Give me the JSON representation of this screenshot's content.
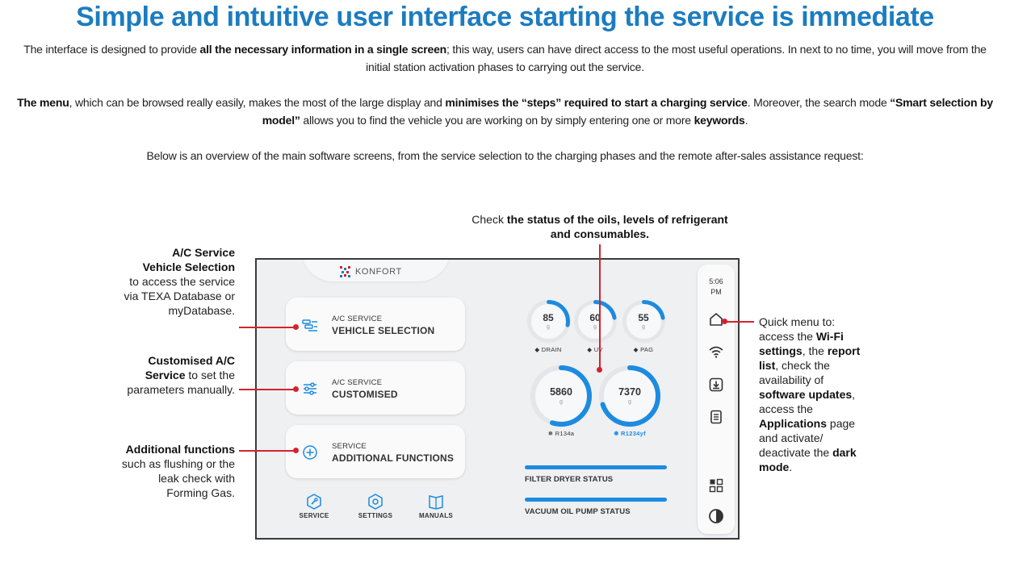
{
  "page": {
    "title": "Simple and intuitive user interface starting the service is immediate",
    "p1": {
      "a": "The interface is designed to provide ",
      "b": "all the necessary information in a single screen",
      "c": "; this way, users can have direct access to the most useful operations. In next to no time, you will move from the initial station activation phases to carrying out the service."
    },
    "p2": {
      "a": "The menu",
      "b": ", which can be browsed really easily, makes the most of the large display and ",
      "c": "minimises the “steps” required to start a charging service",
      "d": ". Moreover, the search mode ",
      "e": "“Smart selection by model”",
      "f": " allows you to find the vehicle you are working on by simply entering one or more ",
      "g": "keywords",
      "h": "."
    },
    "p3": "Below is an overview of the main software screens, from the service selection to the charging phases and the remote after-sales assistance request:"
  },
  "annotations": {
    "vehicle": {
      "b1": "A/C Service",
      "b2": "Vehicle Selection",
      "t": "to access the service via TEXA Database or myDatabase."
    },
    "customised": {
      "b": "Customised A/C Service",
      "t": " to set the parameters manually."
    },
    "additional": {
      "b": "Additional functions",
      "t": " such as flushing or the leak check with Forming Gas."
    },
    "status": {
      "a": "Check ",
      "b": "the status of the oils, levels of refrigerant and consumables."
    },
    "quick": {
      "a": "Quick menu to: access the ",
      "b": "Wi-Fi settings",
      "c": ", the ",
      "d": "report list",
      "e": ", check the availability of ",
      "f": "software updates",
      "g": ", access the ",
      "h": "Applications",
      "i": " page and activate/ deactivate the ",
      "j": "dark mode",
      "k": "."
    }
  },
  "screen": {
    "brand": "KONFORT",
    "time": "5:06",
    "ampm": "PM",
    "cards": [
      {
        "small": "A/C SERVICE",
        "big": "VEHICLE SELECTION",
        "icon": "vehicle-list-icon"
      },
      {
        "small": "A/C SERVICE",
        "big": "CUSTOMISED",
        "icon": "sliders-icon"
      },
      {
        "small": "SERVICE",
        "big": "ADDITIONAL FUNCTIONS",
        "icon": "plus-circle-icon"
      }
    ],
    "bottom_nav": [
      "SERVICE",
      "SETTINGS",
      "MANUALS"
    ],
    "small_gauges": [
      {
        "value": "85",
        "unit": "g",
        "label": "DRAIN",
        "fill": 0.28
      },
      {
        "value": "60",
        "unit": "g",
        "label": "UV",
        "fill": 0.22
      },
      {
        "value": "55",
        "unit": "g",
        "label": "PAG",
        "fill": 0.22
      }
    ],
    "big_gauges": [
      {
        "value": "5860",
        "unit": "g",
        "label": "R134a",
        "fill": 0.55
      },
      {
        "value": "7370",
        "unit": "g",
        "label": "R1234yf",
        "fill": 0.7
      }
    ],
    "bars": [
      {
        "label": "FILTER DRYER STATUS",
        "level": 1.0
      },
      {
        "label": "VACUUM OIL PUMP STATUS",
        "level": 1.0
      }
    ],
    "colors": {
      "accent": "#1d8be0",
      "callout": "#d3242c",
      "title": "#1c7cc0"
    }
  }
}
